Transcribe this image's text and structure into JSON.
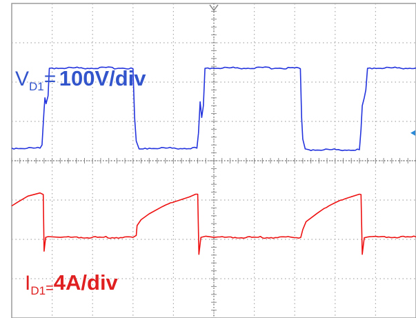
{
  "chart_data": {
    "type": "line",
    "title": "",
    "xlabel": "",
    "ylabel": "",
    "grid": true,
    "xlim": [
      0,
      10
    ],
    "ylim": [
      -4,
      4
    ],
    "x_divisions": 10,
    "y_divisions": 8,
    "series": [
      {
        "name": "VD1",
        "channel_label": {
          "symbol": "V",
          "subscript": "D1",
          "eq": "=",
          "scale": "100V/div"
        },
        "color": "#2233dd",
        "points": [
          [
            0.0,
            0.32
          ],
          [
            0.7,
            0.32
          ],
          [
            0.75,
            0.4
          ],
          [
            0.8,
            1.3
          ],
          [
            0.82,
            1.6
          ],
          [
            0.85,
            1.45
          ],
          [
            0.9,
            1.65
          ],
          [
            0.93,
            2.35
          ],
          [
            1.0,
            2.36
          ],
          [
            2.95,
            2.36
          ],
          [
            3.0,
            2.34
          ],
          [
            3.04,
            1.1
          ],
          [
            3.08,
            0.5
          ],
          [
            3.15,
            0.3
          ],
          [
            3.25,
            0.3
          ],
          [
            3.3,
            0.32
          ],
          [
            4.58,
            0.32
          ],
          [
            4.62,
            0.7
          ],
          [
            4.66,
            1.5
          ],
          [
            4.7,
            1.1
          ],
          [
            4.74,
            1.4
          ],
          [
            4.78,
            2.35
          ],
          [
            4.85,
            2.36
          ],
          [
            7.1,
            2.36
          ],
          [
            7.14,
            2.34
          ],
          [
            7.17,
            1.1
          ],
          [
            7.2,
            0.55
          ],
          [
            7.26,
            0.3
          ],
          [
            7.35,
            0.28
          ],
          [
            8.6,
            0.28
          ],
          [
            8.64,
            0.8
          ],
          [
            8.67,
            1.4
          ],
          [
            8.72,
            1.6
          ],
          [
            8.76,
            1.8
          ],
          [
            8.8,
            2.35
          ],
          [
            8.86,
            2.36
          ],
          [
            10.0,
            2.36
          ]
        ]
      },
      {
        "name": "ID1",
        "channel_label": {
          "symbol": "I",
          "subscript": "D1",
          "eq": "=",
          "scale": "4A/div"
        },
        "color": "#ee1111",
        "points": [
          [
            0.0,
            -1.15
          ],
          [
            0.15,
            -1.05
          ],
          [
            0.4,
            -0.9
          ],
          [
            0.7,
            -0.82
          ],
          [
            0.78,
            -0.86
          ],
          [
            0.8,
            -2.3
          ],
          [
            0.84,
            -1.95
          ],
          [
            0.9,
            -1.93
          ],
          [
            1.2,
            -1.95
          ],
          [
            3.0,
            -1.95
          ],
          [
            3.08,
            -1.9
          ],
          [
            3.1,
            -1.65
          ],
          [
            3.2,
            -1.5
          ],
          [
            3.4,
            -1.35
          ],
          [
            3.7,
            -1.18
          ],
          [
            4.1,
            -1.02
          ],
          [
            4.4,
            -0.92
          ],
          [
            4.55,
            -0.85
          ],
          [
            4.6,
            -0.85
          ],
          [
            4.63,
            -2.38
          ],
          [
            4.68,
            -1.95
          ],
          [
            4.8,
            -1.92
          ],
          [
            5.0,
            -1.95
          ],
          [
            7.15,
            -1.95
          ],
          [
            7.2,
            -1.75
          ],
          [
            7.28,
            -1.55
          ],
          [
            7.5,
            -1.38
          ],
          [
            7.9,
            -1.12
          ],
          [
            8.3,
            -0.95
          ],
          [
            8.6,
            -0.85
          ],
          [
            8.64,
            -0.86
          ],
          [
            8.67,
            -2.38
          ],
          [
            8.72,
            -1.96
          ],
          [
            8.8,
            -1.94
          ],
          [
            10.0,
            -1.94
          ]
        ]
      }
    ]
  }
}
